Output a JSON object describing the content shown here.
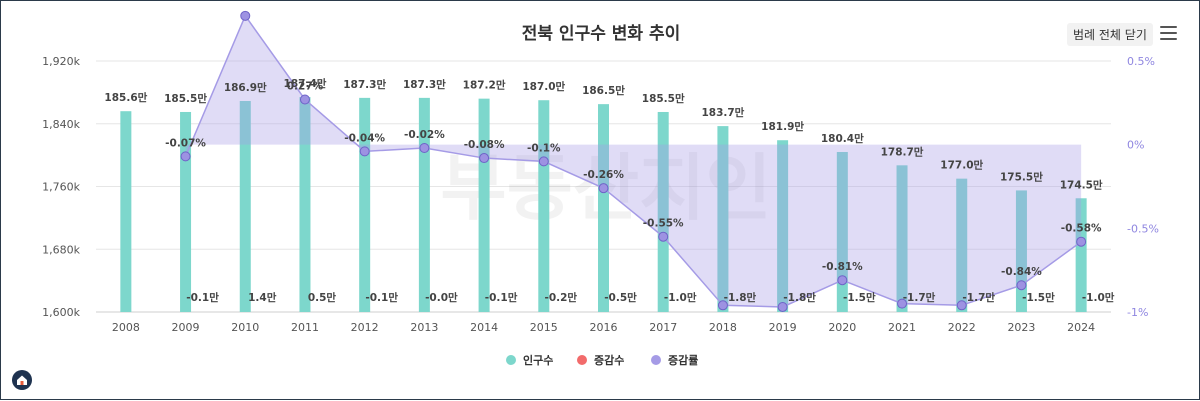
{
  "title": "전북 인구수 변화 추이",
  "controls": {
    "legend_toggle": "범례 전체 닫기"
  },
  "colors": {
    "population": "#7dd7cc",
    "change": "#f26b6b",
    "rate": "#a59be6",
    "rate_area": "#dcd7fb",
    "grid": "#e6e6e6"
  },
  "watermark": "부동산지인",
  "chart_data": {
    "type": "bar+line",
    "title": "전북 인구수 변화 추이",
    "categories": [
      "2008",
      "2009",
      "2010",
      "2011",
      "2012",
      "2013",
      "2014",
      "2015",
      "2016",
      "2017",
      "2018",
      "2019",
      "2020",
      "2021",
      "2022",
      "2023",
      "2024"
    ],
    "y_left": {
      "min": 1600,
      "max": 1920,
      "ticks": [
        1600,
        1680,
        1760,
        1840,
        1920
      ],
      "tick_labels": [
        "1,600k",
        "1,680k",
        "1,760k",
        "1,840k",
        "1,920k"
      ]
    },
    "y_right": {
      "min": -1,
      "max": 0.5,
      "ticks": [
        -1,
        -0.5,
        0,
        0.5
      ],
      "tick_labels": [
        "-1%",
        "-0.5%",
        "0%",
        "0.5%"
      ]
    },
    "series": [
      {
        "name": "인구수",
        "type": "bar",
        "axis": "left",
        "values": [
          1856,
          1855,
          1869,
          1874,
          1873,
          1873,
          1872,
          1870,
          1865,
          1855,
          1837,
          1819,
          1804,
          1787,
          1770,
          1755,
          1745
        ],
        "labels": [
          "185.6만",
          "185.5만",
          "186.9만",
          "187.4만",
          "187.3만",
          "187.3만",
          "187.2만",
          "187.0만",
          "186.5만",
          "185.5만",
          "183.7만",
          "181.9만",
          "180.4만",
          "178.7만",
          "177.0만",
          "175.5만",
          "174.5만"
        ]
      },
      {
        "name": "증감수",
        "type": "label",
        "labels": [
          "",
          "-0.1만",
          "1.4만",
          "0.5만",
          "-0.1만",
          "-0.0만",
          "-0.1만",
          "-0.2만",
          "-0.5만",
          "-1.0만",
          "-1.8만",
          "-1.8만",
          "-1.5만",
          "-1.7만",
          "-1.7만",
          "-1.5만",
          "-1.0만"
        ]
      },
      {
        "name": "증감률",
        "type": "line",
        "axis": "right",
        "values": [
          null,
          -0.07,
          0.77,
          0.27,
          -0.04,
          -0.02,
          -0.08,
          -0.1,
          -0.26,
          -0.55,
          -0.96,
          -0.97,
          -0.81,
          -0.95,
          -0.96,
          -0.84,
          -0.58
        ],
        "labels": [
          "",
          "-0.07%",
          "",
          "0.27%",
          "-0.04%",
          "-0.02%",
          "-0.08%",
          "-0.1%",
          "-0.26%",
          "-0.55%",
          "",
          "",
          "-0.81%",
          "",
          "",
          "-0.84%",
          "-0.58%"
        ]
      }
    ],
    "legend": [
      {
        "name": "인구수",
        "color": "#7dd7cc"
      },
      {
        "name": "증감수",
        "color": "#f26b6b"
      },
      {
        "name": "증감률",
        "color": "#a59be6"
      }
    ]
  }
}
